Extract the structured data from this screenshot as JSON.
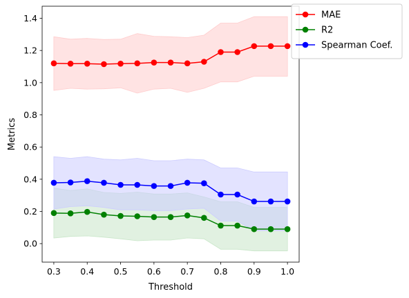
{
  "chart_data": {
    "type": "line",
    "xlabel": "Threshold",
    "ylabel": "Metrics",
    "xlim": [
      0.265,
      1.035
    ],
    "ylim": [
      -0.115,
      1.475
    ],
    "xticks": [
      "0.3",
      "0.4",
      "0.5",
      "0.6",
      "0.7",
      "0.8",
      "0.9",
      "1.0"
    ],
    "yticks": [
      "0.0",
      "0.2",
      "0.4",
      "0.6",
      "0.8",
      "1.0",
      "1.2",
      "1.4"
    ],
    "grid": false,
    "legend_position": "top-right, outside plot",
    "x": [
      0.3,
      0.35,
      0.4,
      0.45,
      0.5,
      0.55,
      0.6,
      0.65,
      0.7,
      0.75,
      0.8,
      0.85,
      0.9,
      0.95,
      1.0
    ],
    "series": [
      {
        "name": "MAE",
        "color": "#ff0000",
        "band_color": "#ffcccc",
        "values": [
          1.12,
          1.118,
          1.118,
          1.115,
          1.118,
          1.12,
          1.125,
          1.125,
          1.12,
          1.13,
          1.19,
          1.19,
          1.227,
          1.227,
          1.227
        ],
        "lower": [
          0.952,
          0.965,
          0.96,
          0.962,
          0.968,
          0.935,
          0.96,
          0.965,
          0.94,
          0.965,
          1.005,
          1.005,
          1.04,
          1.04,
          1.04
        ],
        "upper": [
          1.285,
          1.27,
          1.275,
          1.268,
          1.27,
          1.305,
          1.288,
          1.285,
          1.28,
          1.295,
          1.37,
          1.37,
          1.41,
          1.41,
          1.41
        ]
      },
      {
        "name": "R2",
        "color": "#008000",
        "band_color": "#c8e6c8",
        "values": [
          0.19,
          0.188,
          0.197,
          0.18,
          0.172,
          0.17,
          0.165,
          0.165,
          0.175,
          0.16,
          0.112,
          0.112,
          0.09,
          0.09,
          0.09
        ],
        "lower": [
          0.035,
          0.045,
          0.048,
          0.04,
          0.03,
          0.018,
          0.022,
          0.022,
          0.035,
          0.03,
          -0.035,
          -0.035,
          -0.045,
          -0.045,
          -0.045
        ],
        "upper": [
          0.345,
          0.33,
          0.34,
          0.318,
          0.312,
          0.32,
          0.308,
          0.308,
          0.315,
          0.29,
          0.26,
          0.26,
          0.225,
          0.225,
          0.225
        ]
      },
      {
        "name": "Spearman Coef.",
        "color": "#0000ff",
        "band_color": "#ccccff",
        "values": [
          0.378,
          0.38,
          0.388,
          0.378,
          0.365,
          0.365,
          0.358,
          0.358,
          0.378,
          0.375,
          0.305,
          0.305,
          0.262,
          0.262,
          0.262
        ],
        "lower": [
          0.215,
          0.23,
          0.235,
          0.225,
          0.21,
          0.21,
          0.205,
          0.205,
          0.215,
          0.22,
          0.14,
          0.14,
          0.08,
          0.08,
          0.08
        ],
        "upper": [
          0.54,
          0.53,
          0.54,
          0.525,
          0.52,
          0.53,
          0.515,
          0.515,
          0.525,
          0.52,
          0.47,
          0.47,
          0.445,
          0.445,
          0.445
        ]
      }
    ]
  }
}
